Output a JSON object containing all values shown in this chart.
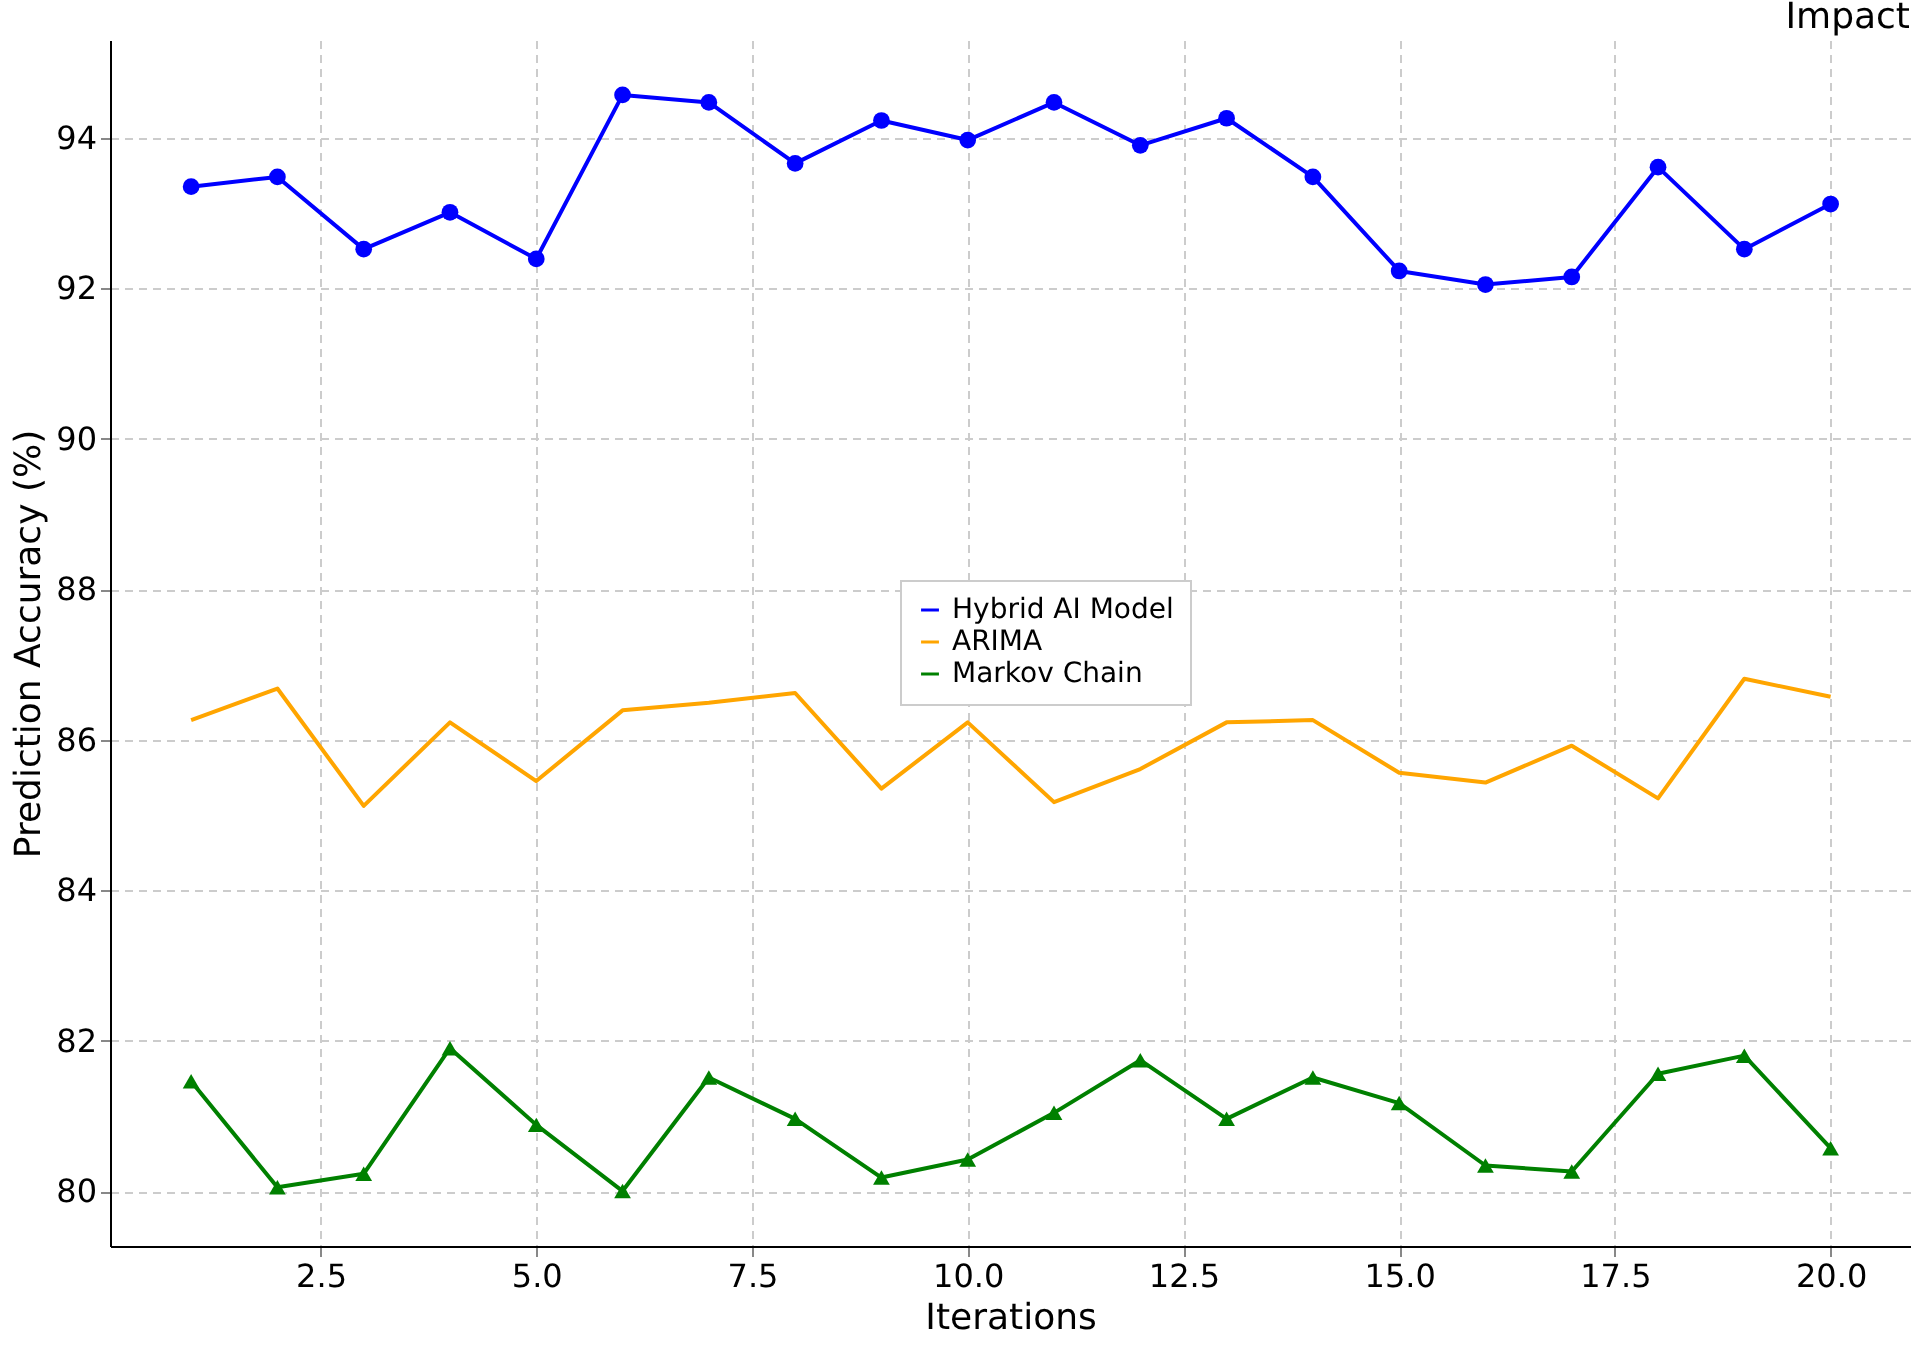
{
  "chart_data": {
    "type": "line",
    "title": "Impact",
    "xlabel": "Iterations",
    "ylabel": "Prediction Accuracy (%)",
    "x": [
      1,
      2,
      3,
      4,
      5,
      6,
      7,
      8,
      9,
      10,
      11,
      12,
      13,
      14,
      15,
      16,
      17,
      18,
      19,
      20
    ],
    "series": [
      {
        "name": "Hybrid AI Model",
        "color": "#0000ff",
        "marker": "circle",
        "values": [
          93.35,
          93.48,
          92.52,
          93.01,
          92.39,
          94.57,
          94.47,
          93.66,
          94.23,
          93.97,
          94.47,
          93.9,
          94.26,
          93.48,
          92.23,
          92.05,
          92.15,
          93.61,
          92.52,
          93.12
        ]
      },
      {
        "name": "ARIMA",
        "color": "#ffa500",
        "marker": "none",
        "values": [
          86.26,
          86.68,
          85.12,
          86.23,
          85.45,
          86.39,
          86.49,
          86.62,
          85.35,
          86.23,
          85.17,
          85.61,
          86.23,
          86.26,
          85.56,
          85.43,
          85.92,
          85.22,
          86.81,
          86.57
        ]
      },
      {
        "name": "Markov Chain",
        "color": "#008000",
        "marker": "triangle",
        "values": [
          81.46,
          80.05,
          80.23,
          81.9,
          80.88,
          80.0,
          81.51,
          80.96,
          80.18,
          80.42,
          81.04,
          81.74,
          80.96,
          81.51,
          81.17,
          80.34,
          80.26,
          81.56,
          81.8,
          80.57
        ]
      }
    ],
    "xlim": [
      0.06,
      20.92
    ],
    "xticks": [
      {
        "value": 2.5,
        "label": "2.5"
      },
      {
        "value": 5,
        "label": "5.0"
      },
      {
        "value": 7.5,
        "label": "7.5"
      },
      {
        "value": 10,
        "label": "10.0"
      },
      {
        "value": 12.5,
        "label": "12.5"
      },
      {
        "value": 15,
        "label": "15.0"
      },
      {
        "value": 17.5,
        "label": "17.5"
      },
      {
        "value": 20,
        "label": "20.0"
      }
    ],
    "ylim": [
      79.27,
      95.3
    ],
    "yticks": [
      80,
      82,
      84,
      86,
      88,
      90,
      92,
      94
    ],
    "grid": true,
    "legend": "center"
  }
}
